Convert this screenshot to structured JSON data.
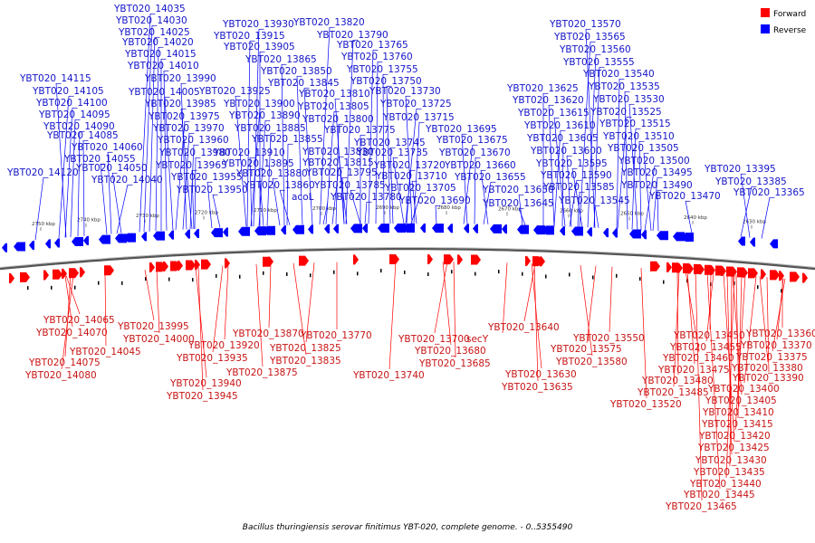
{
  "legend": {
    "forward": {
      "label": "Forward",
      "color": "#ff0000"
    },
    "reverse": {
      "label": "Reverse",
      "color": "#0000ff"
    }
  },
  "caption": "Bacillus thuringiensis serovar finitimus YBT-020, complete genome. - 0..5355490",
  "axis_ticks": [
    "2750 kbp",
    "2740 kbp",
    "2730 kbp",
    "2720 kbp",
    "2710 kbp",
    "2700 kbp",
    "2690 kbp",
    "2680 kbp",
    "2670 kbp",
    "2660 kbp",
    "2650 kbp",
    "2640 kbp",
    "2630 kbp"
  ],
  "reverse_labels": [
    "YBT020_14035",
    "YBT020_14030",
    "YBT020_14025",
    "YBT020_14020",
    "YBT020_14015",
    "YBT020_14010",
    "YBT020_13990",
    "YBT020_14005",
    "YBT020_13985",
    "YBT020_13975",
    "YBT020_13970",
    "YBT020_13960",
    "YBT020_13980",
    "YBT020_13965",
    "YBT020_13955",
    "YBT020_13950",
    "YBT020_14115",
    "YBT020_14105",
    "YBT020_14100",
    "YBT020_14095",
    "YBT020_14090",
    "YBT020_14085",
    "YBT020_14060",
    "YBT020_14055",
    "YBT020_14050",
    "YBT020_14040",
    "YBT020_14120",
    "YBT020_13930",
    "YBT020_13915",
    "YBT020_13905",
    "YBT020_13865",
    "YBT020_13850",
    "YBT020_13845",
    "YBT020_13925",
    "YBT020_13900",
    "YBT020_13890",
    "YBT020_13885",
    "YBT020_13855",
    "YBT020_13910",
    "YBT020_13895",
    "YBT020_13880",
    "YBT020_13860",
    "YBT020_13820",
    "YBT020_13790",
    "YBT020_13765",
    "YBT020_13760",
    "YBT020_13755",
    "YBT020_13750",
    "YBT020_13730",
    "YBT020_13810",
    "YBT020_13725",
    "YBT020_13805",
    "YBT020_13715",
    "YBT020_13800",
    "YBT020_13775",
    "YBT020_13745",
    "YBT020_13695",
    "YBT020_13830",
    "YBT020_13735",
    "YBT020_13675",
    "YBT020_13815",
    "YBT020_13720",
    "YBT020_13670",
    "YBT020_13795",
    "YBT020_13710",
    "YBT020_13660",
    "YBT020_13785",
    "YBT020_13705",
    "YBT020_13655",
    "acoL",
    "YBT020_13780",
    "YBT020_13690",
    "YBT020_13650",
    "YBT020_13645",
    "YBT020_13570",
    "YBT020_13565",
    "YBT020_13560",
    "YBT020_13555",
    "YBT020_13540",
    "YBT020_13625",
    "YBT020_13535",
    "YBT020_13620",
    "YBT020_13530",
    "YBT020_13615",
    "YBT020_13525",
    "YBT020_13610",
    "YBT020_13515",
    "YBT020_13605",
    "YBT020_13510",
    "YBT020_13600",
    "YBT020_13505",
    "YBT020_13595",
    "YBT020_13500",
    "YBT020_13590",
    "YBT020_13495",
    "YBT020_13585",
    "YBT020_13490",
    "YBT020_13545",
    "YBT020_13470",
    "YBT020_13395",
    "YBT020_13385",
    "YBT020_13365"
  ],
  "forward_labels": [
    "YBT020_14065",
    "YBT020_14070",
    "YBT020_14045",
    "YBT020_14075",
    "YBT020_14080",
    "YBT020_13995",
    "YBT020_14000",
    "YBT020_13920",
    "YBT020_13935",
    "YBT020_13940",
    "YBT020_13945",
    "YBT020_13870",
    "YBT020_13825",
    "YBT020_13835",
    "YBT020_13875",
    "YBT020_13770",
    "YBT020_13740",
    "YBT020_13700",
    "YBT020_13680",
    "YBT020_13685",
    "secY",
    "YBT020_13640",
    "YBT020_13630",
    "YBT020_13635",
    "YBT020_13550",
    "YBT020_13575",
    "YBT020_13580",
    "YBT020_13520",
    "YBT020_13450",
    "YBT020_13455",
    "YBT020_13460",
    "YBT020_13475",
    "YBT020_13480",
    "YBT020_13485",
    "YBT020_13400",
    "YBT020_13405",
    "YBT020_13410",
    "YBT020_13415",
    "YBT020_13420",
    "YBT020_13425",
    "YBT020_13430",
    "YBT020_13435",
    "YBT020_13440",
    "YBT020_13445",
    "YBT020_13465",
    "YBT020_13360",
    "YBT020_13370",
    "YBT020_13375",
    "YBT020_13380",
    "YBT020_13390"
  ]
}
